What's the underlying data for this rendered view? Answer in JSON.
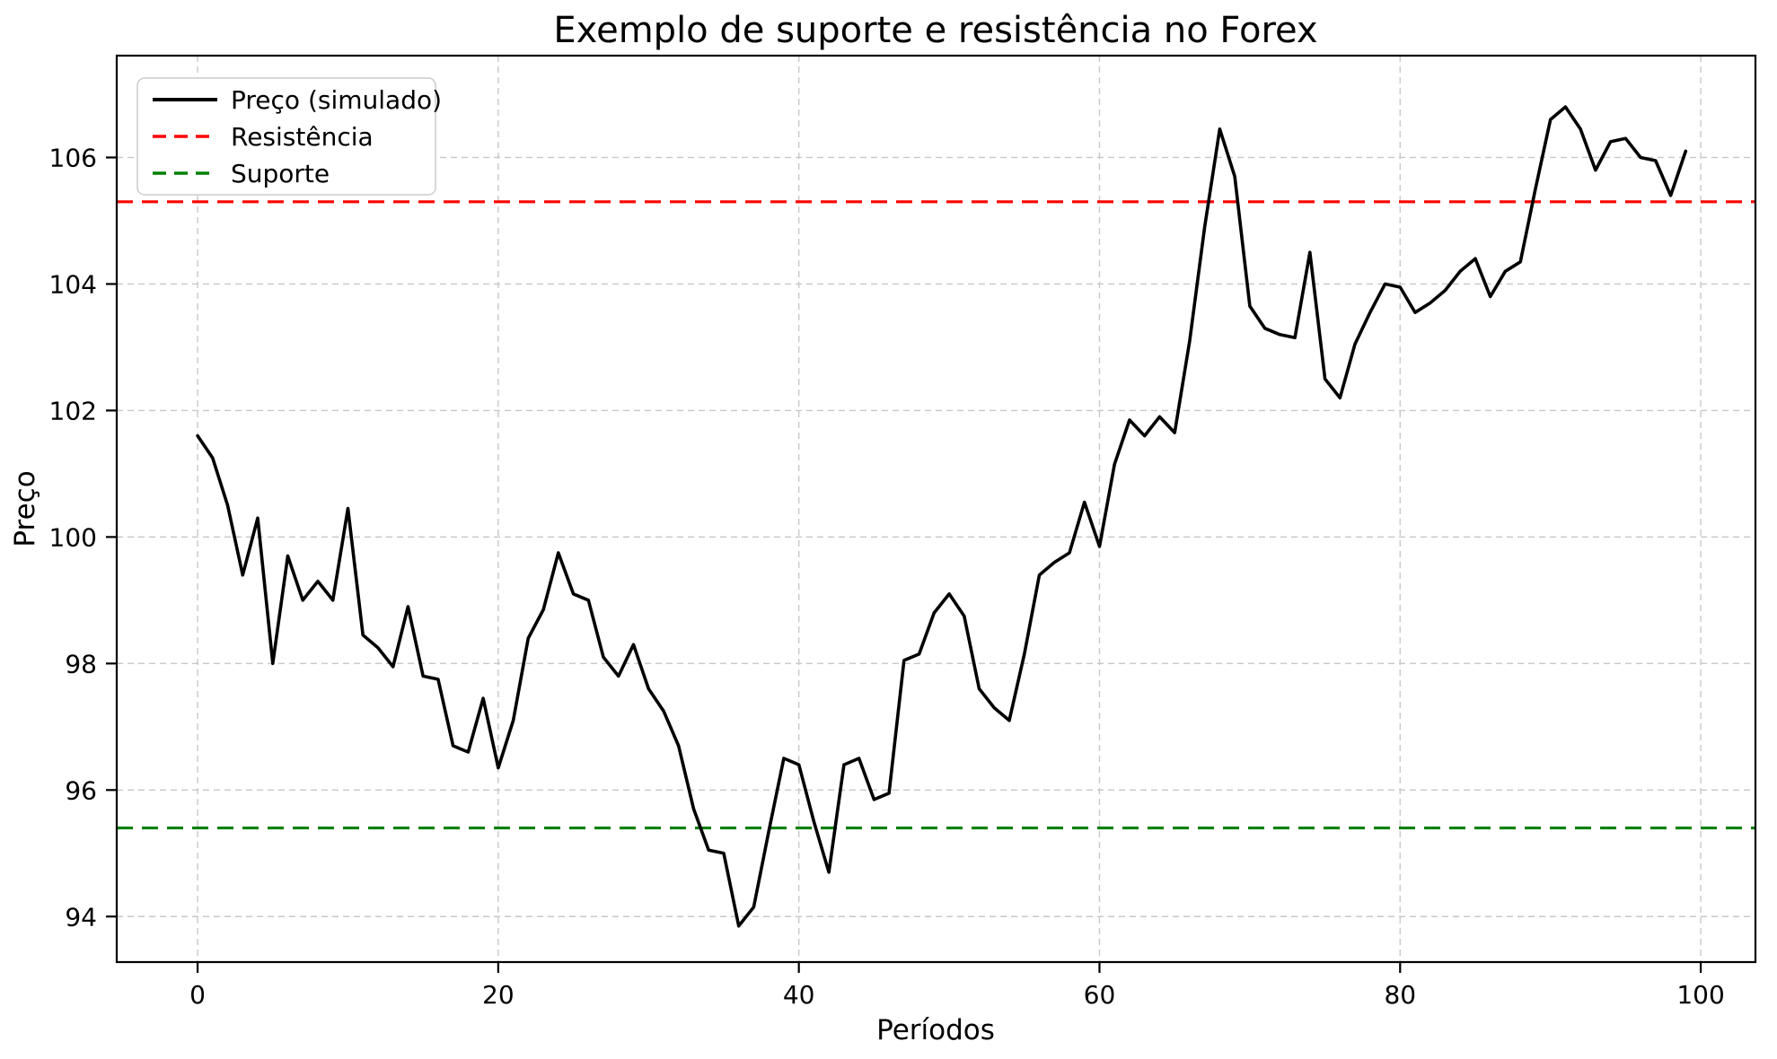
{
  "figure": {
    "background": "#ffffff"
  },
  "chart_data": {
    "type": "line",
    "title": "Exemplo de suporte e resistência no Forex",
    "xlabel": "Períodos",
    "ylabel": "Preço",
    "x_ticks": [
      0,
      20,
      40,
      60,
      80,
      100
    ],
    "y_ticks": [
      94,
      96,
      98,
      100,
      102,
      104,
      106
    ],
    "xlim": [
      -5.38,
      103.64
    ],
    "ylim": [
      93.28,
      107.61
    ],
    "grid": true,
    "grid_color": "#c8c8c8",
    "axis_color": "#000000",
    "legend_position": "upper-left",
    "x_start": 0,
    "x_step": 1,
    "series": [
      {
        "name": "Preço (simulado)",
        "color": "#000000",
        "style": "solid",
        "values": [
          101.6,
          101.25,
          100.5,
          99.4,
          100.3,
          98.0,
          99.7,
          99.0,
          99.3,
          99.0,
          100.45,
          98.45,
          98.25,
          97.95,
          98.9,
          97.8,
          97.75,
          96.7,
          96.6,
          97.45,
          96.35,
          97.1,
          98.4,
          98.85,
          99.75,
          99.1,
          99.0,
          98.1,
          97.8,
          98.3,
          97.6,
          97.25,
          96.7,
          95.7,
          95.05,
          95.0,
          93.85,
          94.15,
          95.35,
          96.5,
          96.4,
          95.5,
          94.7,
          96.4,
          96.5,
          95.85,
          95.95,
          98.05,
          98.15,
          98.8,
          99.1,
          98.75,
          97.6,
          97.3,
          97.1,
          98.15,
          99.4,
          99.6,
          99.75,
          100.55,
          99.85,
          101.15,
          101.85,
          101.6,
          101.9,
          101.65,
          103.1,
          104.9,
          106.45,
          105.7,
          103.65,
          103.3,
          103.2,
          103.15,
          104.5,
          102.5,
          102.2,
          103.05,
          103.55,
          104.0,
          103.95,
          103.55,
          103.7,
          103.9,
          104.2,
          104.4,
          103.8,
          104.2,
          104.35,
          105.5,
          106.6,
          106.8,
          106.45,
          105.8,
          106.25,
          106.3,
          106.0,
          105.95,
          105.4,
          106.1
        ]
      }
    ],
    "resistance": {
      "label": "Resistência",
      "value": 105.3,
      "color": "#ff0000",
      "style": "dashed"
    },
    "support": {
      "label": "Suporte",
      "value": 95.4,
      "color": "#008000",
      "style": "dashed"
    },
    "legend": [
      {
        "label": "Preço (simulado)",
        "color": "#000000",
        "style": "solid"
      },
      {
        "label": "Resistência",
        "color": "#ff0000",
        "style": "dashed"
      },
      {
        "label": "Suporte",
        "color": "#008000",
        "style": "dashed"
      }
    ]
  }
}
